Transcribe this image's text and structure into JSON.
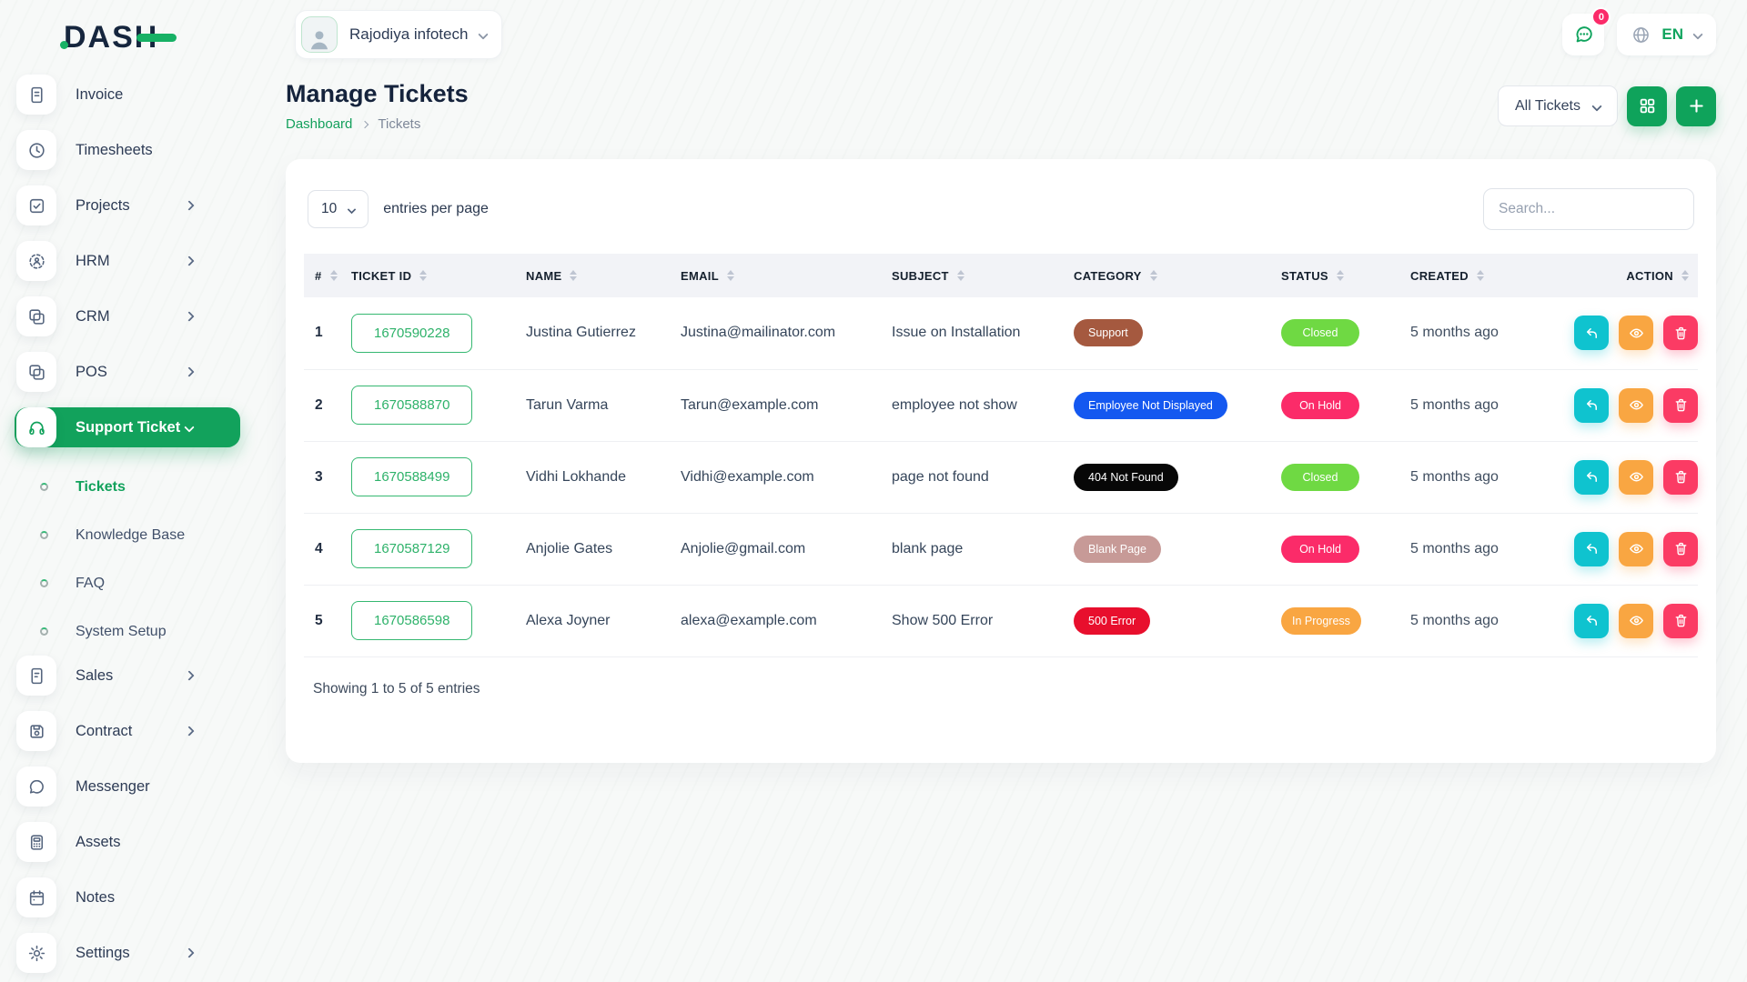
{
  "brand": {
    "logo_text": "DASH"
  },
  "header": {
    "company": "Rajodiya infotech",
    "messages_badge": "0",
    "language": "EN"
  },
  "page": {
    "title": "Manage Tickets",
    "breadcrumb_dashboard": "Dashboard",
    "breadcrumb_current": "Tickets",
    "filter_label": "All Tickets"
  },
  "colors": {
    "primary_green": "#12a25c",
    "closed_green": "#6fd943",
    "on_hold_pink": "#fb2b69",
    "in_progress_orange": "#f9a642",
    "reply_cyan": "#0fc3cf",
    "view_orange": "#f9a642",
    "delete_pink": "#fb3b64",
    "badge_red": "#e80f2d",
    "badge_blue": "#1458f0",
    "badge_brown": "#a5593f",
    "badge_rose": "#c79a97",
    "badge_black": "#070707"
  },
  "sidebar": {
    "items": [
      {
        "label": "Invoice",
        "icon": "invoice",
        "kind": "main",
        "chevron": ""
      },
      {
        "label": "Timesheets",
        "icon": "clock",
        "kind": "main",
        "chevron": ""
      },
      {
        "label": "Projects",
        "icon": "checkbox",
        "kind": "main",
        "chevron": "chev-right"
      },
      {
        "label": "HRM",
        "icon": "hrm",
        "kind": "main",
        "chevron": "chev-right"
      },
      {
        "label": "CRM",
        "icon": "squares",
        "kind": "main",
        "chevron": "chev-right"
      },
      {
        "label": "POS",
        "icon": "squares",
        "kind": "main",
        "chevron": "chev-right"
      },
      {
        "label": "Support Ticket",
        "icon": "headset",
        "kind": "main active",
        "chevron": "chev-down"
      },
      {
        "label": "Tickets",
        "kind": "sub active-sub",
        "chevron": ""
      },
      {
        "label": "Knowledge Base",
        "kind": "sub",
        "chevron": ""
      },
      {
        "label": "FAQ",
        "kind": "sub",
        "chevron": ""
      },
      {
        "label": "System Setup",
        "kind": "sub",
        "chevron": ""
      },
      {
        "label": "Sales",
        "icon": "file",
        "kind": "main",
        "chevron": "chev-right"
      },
      {
        "label": "Contract",
        "icon": "floppy",
        "kind": "main",
        "chevron": "chev-right"
      },
      {
        "label": "Messenger",
        "icon": "chat",
        "kind": "main",
        "chevron": ""
      },
      {
        "label": "Assets",
        "icon": "calculator",
        "kind": "main",
        "chevron": ""
      },
      {
        "label": "Notes",
        "icon": "calendar",
        "kind": "main",
        "chevron": ""
      },
      {
        "label": "Settings",
        "icon": "gear",
        "kind": "main",
        "chevron": "chev-right"
      }
    ]
  },
  "table": {
    "entries_value": "10",
    "entries_label": "entries per page",
    "search_placeholder": "Search...",
    "columns": [
      {
        "label": "#"
      },
      {
        "label": "TICKET ID"
      },
      {
        "label": "NAME"
      },
      {
        "label": "EMAIL"
      },
      {
        "label": "SUBJECT"
      },
      {
        "label": "CATEGORY"
      },
      {
        "label": "STATUS"
      },
      {
        "label": "CREATED"
      },
      {
        "label": "ACTION",
        "align": "al-right"
      }
    ],
    "rows": [
      {
        "num": "1",
        "ticket_id": "1670590228",
        "name": "Justina Gutierrez",
        "email": "Justina@mailinator.com",
        "subject": "Issue on Installation",
        "category": "Support",
        "category_color": "#a5593f",
        "status": "Closed",
        "status_color": "#6fd943",
        "created": "5 months ago"
      },
      {
        "num": "2",
        "ticket_id": "1670588870",
        "name": "Tarun Varma",
        "email": "Tarun@example.com",
        "subject": "employee not show",
        "category": "Employee Not Displayed",
        "category_color": "#1458f0",
        "status": "On Hold",
        "status_color": "#fb2b69",
        "created": "5 months ago"
      },
      {
        "num": "3",
        "ticket_id": "1670588499",
        "name": "Vidhi Lokhande",
        "email": "Vidhi@example.com",
        "subject": "page not found",
        "category": "404 Not Found",
        "category_color": "#070707",
        "status": "Closed",
        "status_color": "#6fd943",
        "created": "5 months ago"
      },
      {
        "num": "4",
        "ticket_id": "1670587129",
        "name": "Anjolie Gates",
        "email": "Anjolie@gmail.com",
        "subject": "blank page",
        "category": "Blank Page",
        "category_color": "#c79a97",
        "status": "On Hold",
        "status_color": "#fb2b69",
        "created": "5 months ago"
      },
      {
        "num": "5",
        "ticket_id": "1670586598",
        "name": "Alexa Joyner",
        "email": "alexa@example.com",
        "subject": "Show 500 Error",
        "category": "500 Error",
        "category_color": "#e80f2d",
        "status": "In Progress",
        "status_color": "#f9a642",
        "created": "5 months ago"
      }
    ],
    "footer": "Showing 1 to 5 of 5 entries"
  }
}
